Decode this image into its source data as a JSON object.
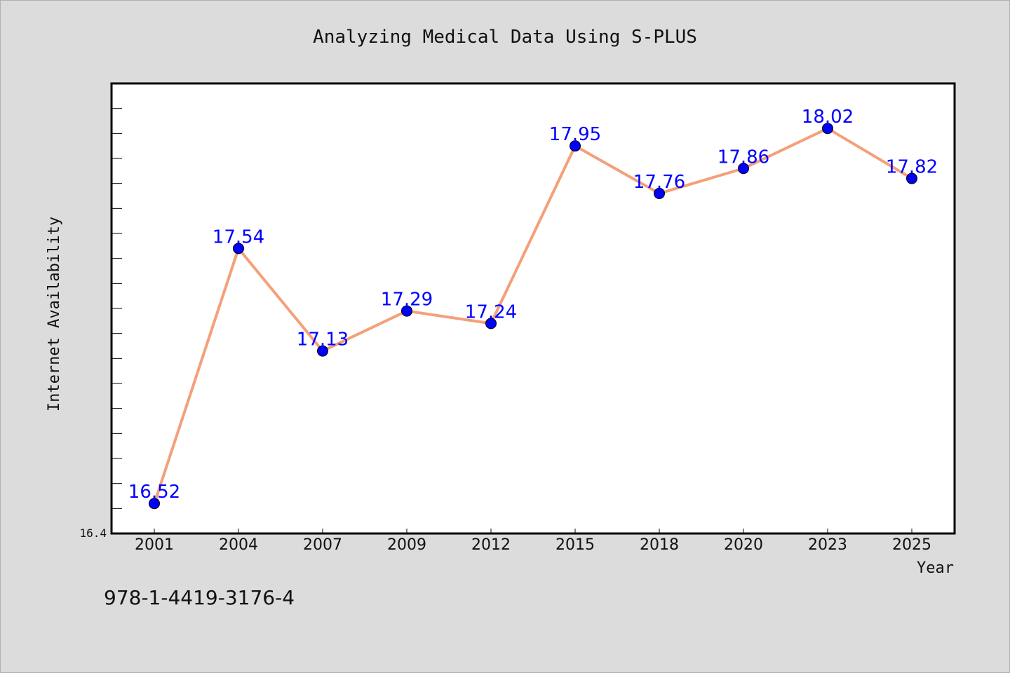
{
  "chart_data": {
    "type": "line",
    "title": "Analyzing Medical Data Using S-PLUS",
    "xlabel": "Year",
    "ylabel": "Internet Availability",
    "categories": [
      "2001",
      "2004",
      "2007",
      "2009",
      "2012",
      "2015",
      "2018",
      "2020",
      "2023",
      "2025"
    ],
    "values": [
      16.52,
      17.54,
      17.13,
      17.29,
      17.24,
      17.95,
      17.76,
      17.86,
      18.02,
      17.82
    ],
    "data_labels": [
      "16.52",
      "17.54",
      "17.13",
      "17.29",
      "17.24",
      "17.95",
      "17.76",
      "17.86",
      "18.02",
      "17.82"
    ],
    "ylim": [
      16.4,
      18.2
    ],
    "ymin_tick_label": "16.4",
    "grid": false,
    "legend": "none",
    "line_color": "#f4a07a",
    "marker_color": "#0000ff",
    "label_color": "#0000ff"
  },
  "footer": {
    "isbn": "978-1-4419-3176-4"
  }
}
